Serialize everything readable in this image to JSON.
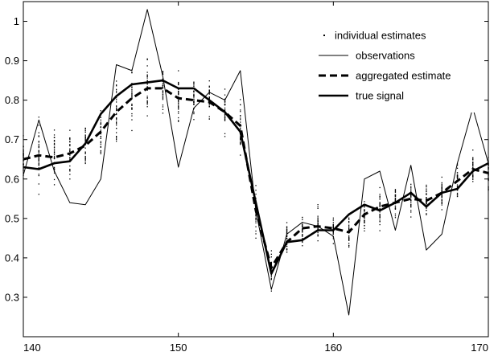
{
  "chart_data": {
    "type": "line",
    "xlim": [
      140,
      170
    ],
    "ylim": [
      0.2,
      1.05
    ],
    "x_ticks": [
      "140",
      "150",
      "160",
      "170"
    ],
    "y_ticks": [
      "0.3",
      "0.4",
      "0.5",
      "0.6",
      "0.7",
      "0.8",
      "0.9",
      "1"
    ],
    "legend_position": "top-right",
    "grid": false,
    "legend": [
      {
        "label": "individual estimates",
        "style": "dots"
      },
      {
        "label": "observations",
        "style": "thin"
      },
      {
        "label": "aggregated estimate",
        "style": "dashed"
      },
      {
        "label": "true signal",
        "style": "thick"
      }
    ],
    "x": [
      140,
      141,
      142,
      143,
      144,
      145,
      146,
      147,
      148,
      149,
      150,
      151,
      152,
      153,
      154,
      155,
      156,
      157,
      158,
      159,
      160,
      161,
      162,
      163,
      164,
      165,
      166,
      167,
      168,
      169,
      170
    ],
    "series": [
      {
        "name": "observations",
        "style": "thin",
        "values": [
          0.61,
          0.75,
          0.62,
          0.54,
          0.535,
          0.6,
          0.89,
          0.875,
          1.03,
          0.86,
          0.63,
          0.78,
          0.82,
          0.8,
          0.875,
          0.52,
          0.32,
          0.46,
          0.49,
          0.48,
          0.455,
          0.255,
          0.6,
          0.62,
          0.47,
          0.635,
          0.42,
          0.46,
          0.64,
          0.78,
          0.64
        ]
      },
      {
        "name": "aggregated estimate",
        "style": "dashed",
        "values": [
          0.65,
          0.66,
          0.655,
          0.665,
          0.685,
          0.72,
          0.77,
          0.805,
          0.83,
          0.83,
          0.805,
          0.8,
          0.795,
          0.77,
          0.735,
          0.52,
          0.375,
          0.44,
          0.475,
          0.48,
          0.475,
          0.465,
          0.51,
          0.53,
          0.54,
          0.55,
          0.545,
          0.565,
          0.595,
          0.625,
          0.615
        ]
      },
      {
        "name": "true signal",
        "style": "thick",
        "values": [
          0.63,
          0.625,
          0.64,
          0.645,
          0.69,
          0.765,
          0.81,
          0.84,
          0.845,
          0.85,
          0.83,
          0.83,
          0.8,
          0.77,
          0.72,
          0.54,
          0.36,
          0.44,
          0.445,
          0.47,
          0.47,
          0.51,
          0.535,
          0.52,
          0.54,
          0.565,
          0.53,
          0.565,
          0.575,
          0.62,
          0.64
        ]
      }
    ],
    "individual_estimates_spread": [
      0.08,
      0.12,
      0.1,
      0.09,
      0.1,
      0.09,
      0.12,
      0.12,
      0.12,
      0.1,
      0.09,
      0.1,
      0.09,
      0.09,
      0.11,
      0.11,
      0.1,
      0.08,
      0.07,
      0.07,
      0.06,
      0.07,
      0.07,
      0.08,
      0.07,
      0.07,
      0.07,
      0.07,
      0.08,
      0.08,
      0.08
    ]
  }
}
